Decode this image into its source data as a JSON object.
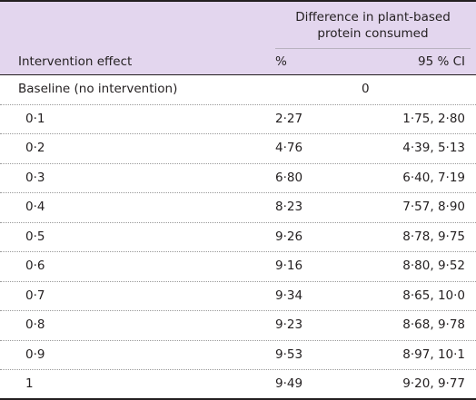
{
  "table": {
    "spanning_header": "Difference in plant-based protein consumed",
    "columns": {
      "effect": "Intervention effect",
      "percent": "%",
      "ci": "95 % CI"
    },
    "baseline": {
      "label": "Baseline (no intervention)",
      "value": "0"
    },
    "rows": [
      {
        "effect": "0·1",
        "percent": "2·27",
        "ci": "1·75, 2·80"
      },
      {
        "effect": "0·2",
        "percent": "4·76",
        "ci": "4·39, 5·13"
      },
      {
        "effect": "0·3",
        "percent": "6·80",
        "ci": "6·40, 7·19"
      },
      {
        "effect": "0·4",
        "percent": "8·23",
        "ci": "7·57, 8·90"
      },
      {
        "effect": "0·5",
        "percent": "9·26",
        "ci": "8·78, 9·75"
      },
      {
        "effect": "0·6",
        "percent": "9·16",
        "ci": "8·80, 9·52"
      },
      {
        "effect": "0·7",
        "percent": "9·34",
        "ci": "8·65, 10·0"
      },
      {
        "effect": "0·8",
        "percent": "9·23",
        "ci": "8·68, 9·78"
      },
      {
        "effect": "0·9",
        "percent": "9·53",
        "ci": "8·97, 10·1"
      },
      {
        "effect": "1",
        "percent": "9·49",
        "ci": "9·20, 9·77"
      }
    ]
  }
}
